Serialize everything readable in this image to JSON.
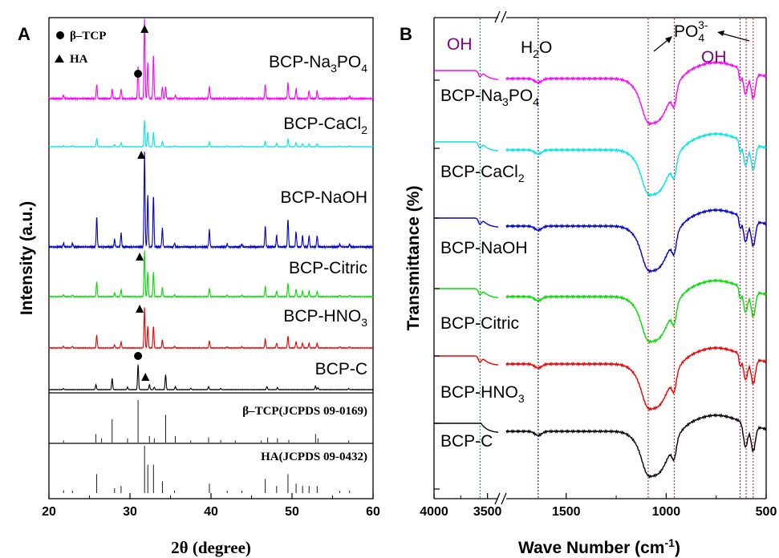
{
  "chart_data": [
    {
      "panel": "A",
      "type": "line",
      "xlabel": "2θ (degree)",
      "ylabel": "Intensity (a.u.)",
      "xlim": [
        20,
        60
      ],
      "xticks": [
        "20",
        "30",
        "40",
        "50",
        "60"
      ],
      "legend": [
        {
          "symbol": "circle",
          "label": "β–TCP"
        },
        {
          "symbol": "triangle",
          "label": "HA"
        }
      ],
      "peak_positions": {
        "HA": [
          25.9,
          28.1,
          28.9,
          31.8,
          32.2,
          32.9,
          34.0,
          39.8,
          46.7,
          48.1,
          49.5,
          50.5,
          51.3,
          52.1,
          53.1
        ],
        "beta_TCP": [
          25.8,
          27.8,
          31.0,
          34.4,
          35.6,
          37.5,
          39.7,
          47.0,
          48.2,
          52.9,
          53.2
        ]
      },
      "series": [
        {
          "name": "BCP-Na₃PO₄",
          "color": "#ff00ff",
          "label_base": "BCP-Na",
          "label_sub": "3",
          "label_tail": "PO",
          "label_sub2": "4",
          "phase": "mixed",
          "scale": 1.0
        },
        {
          "name": "BCP-CaCl₂",
          "color": "#00e5e5",
          "label_base": "BCP-CaCl",
          "label_sub": "2",
          "label_tail": "",
          "label_sub2": "",
          "phase": "HA",
          "scale": 0.55
        },
        {
          "name": "BCP-NaOH",
          "color": "#0000cc",
          "label_base": "BCP-NaOH",
          "label_sub": "",
          "label_tail": "",
          "label_sub2": "",
          "phase": "HA",
          "scale": 1.0
        },
        {
          "name": "BCP-Citric",
          "color": "#00dd00",
          "label_base": "BCP-Citric",
          "label_sub": "",
          "label_tail": "",
          "label_sub2": "",
          "phase": "HA",
          "scale": 0.85
        },
        {
          "name": "BCP-HNO₃",
          "color": "#ee0000",
          "label_base": "BCP-HNO",
          "label_sub": "3",
          "label_tail": "",
          "label_sub2": "",
          "phase": "HA",
          "scale": 0.75
        },
        {
          "name": "BCP-C",
          "color": "#000000",
          "label_base": "BCP-C",
          "label_sub": "",
          "label_tail": "",
          "label_sub2": "",
          "phase": "TCP",
          "scale": 0.7
        }
      ],
      "references": [
        {
          "label": "β–TCP(JCPDS 09-0169)",
          "sticks": [
            [
              21.8,
              0.05
            ],
            [
              25.8,
              0.2
            ],
            [
              26.5,
              0.1
            ],
            [
              27.8,
              0.55
            ],
            [
              29.7,
              0.1
            ],
            [
              31.0,
              1.0
            ],
            [
              32.4,
              0.15
            ],
            [
              33.0,
              0.1
            ],
            [
              34.4,
              0.65
            ],
            [
              35.6,
              0.15
            ],
            [
              37.5,
              0.05
            ],
            [
              39.7,
              0.12
            ],
            [
              41.2,
              0.06
            ],
            [
              43.0,
              0.05
            ],
            [
              46.2,
              0.05
            ],
            [
              47.0,
              0.12
            ],
            [
              48.2,
              0.1
            ],
            [
              49.6,
              0.06
            ],
            [
              52.9,
              0.2
            ],
            [
              53.2,
              0.1
            ],
            [
              57.0,
              0.05
            ]
          ]
        },
        {
          "label": "HA(JCPDS 09-0432)",
          "sticks": [
            [
              21.8,
              0.06
            ],
            [
              22.9,
              0.05
            ],
            [
              25.9,
              0.4
            ],
            [
              28.1,
              0.1
            ],
            [
              28.9,
              0.15
            ],
            [
              31.8,
              1.0
            ],
            [
              32.2,
              0.6
            ],
            [
              32.9,
              0.6
            ],
            [
              34.0,
              0.25
            ],
            [
              35.5,
              0.05
            ],
            [
              39.8,
              0.2
            ],
            [
              42.0,
              0.05
            ],
            [
              43.8,
              0.05
            ],
            [
              46.7,
              0.3
            ],
            [
              48.1,
              0.15
            ],
            [
              49.5,
              0.4
            ],
            [
              50.5,
              0.2
            ],
            [
              51.3,
              0.15
            ],
            [
              52.1,
              0.15
            ],
            [
              53.1,
              0.15
            ],
            [
              55.9,
              0.05
            ],
            [
              57.1,
              0.05
            ]
          ]
        }
      ],
      "markers": [
        {
          "type": "triangle",
          "series": "BCP-Na₃PO₄",
          "x": 31.8
        },
        {
          "type": "circle",
          "series": "BCP-Na₃PO₄",
          "x": 31.0
        },
        {
          "type": "triangle",
          "series": "BCP-NaOH",
          "x": 31.4
        },
        {
          "type": "triangle",
          "series": "BCP-Citric",
          "x": 31.2
        },
        {
          "type": "triangle",
          "series": "BCP-HNO₃",
          "x": 31.2
        },
        {
          "type": "circle",
          "series": "BCP-C",
          "x": 31.0
        },
        {
          "type": "triangle",
          "series": "BCP-C",
          "x": 31.9
        }
      ]
    },
    {
      "panel": "B",
      "type": "line",
      "xlabel": "Wave Number (cm⁻¹)",
      "xlabel_main": "Wave Number (cm",
      "xlabel_sup": "-1",
      "xlabel_close": ")",
      "ylabel": "Transmittance (%)",
      "xaxis_reversed": true,
      "xaxis_break": [
        3400,
        1800
      ],
      "xticks": [
        "4000",
        "3500",
        "1500",
        "1000",
        "500"
      ],
      "annotations": {
        "OH_left": "OH",
        "H2O_base": "H",
        "H2O_sub": "2",
        "H2O_tail": "O",
        "PO4_base": "PO",
        "PO4_sub": "4",
        "PO4_sup": "3-",
        "OH_right": "OH"
      },
      "reference_lines": [
        {
          "x": 3570,
          "color": "#008800"
        },
        {
          "x": 1640,
          "color": "#000080"
        },
        {
          "x": 1090,
          "color": "#dd0000"
        },
        {
          "x": 960,
          "color": "#dd0000"
        },
        {
          "x": 630,
          "color": "#8800aa"
        },
        {
          "x": 600,
          "color": "#dd0000"
        },
        {
          "x": 565,
          "color": "#dd0000"
        }
      ],
      "series": [
        {
          "name": "BCP-Na₃PO₄",
          "color": "#ff00ff",
          "label_base": "BCP-Na",
          "label_sub": "3",
          "label_tail": "PO",
          "label_sub2": "4"
        },
        {
          "name": "BCP-CaCl₂",
          "color": "#00e5e5",
          "label_base": "BCP-CaCl",
          "label_sub": "2",
          "label_tail": "",
          "label_sub2": ""
        },
        {
          "name": "BCP-NaOH",
          "color": "#0000cc",
          "label_base": "BCP-NaOH",
          "label_sub": "",
          "label_tail": "",
          "label_sub2": ""
        },
        {
          "name": "BCP-Citric",
          "color": "#00dd00",
          "label_base": "BCP-Citric",
          "label_sub": "",
          "label_tail": "",
          "label_sub2": ""
        },
        {
          "name": "BCP-HNO₃",
          "color": "#ee0000",
          "label_base": "BCP-HNO",
          "label_sub": "3",
          "label_tail": "",
          "label_sub2": ""
        },
        {
          "name": "BCP-C",
          "color": "#000000",
          "label_base": "BCP-C",
          "label_sub": "",
          "label_tail": "",
          "label_sub2": ""
        }
      ]
    }
  ]
}
